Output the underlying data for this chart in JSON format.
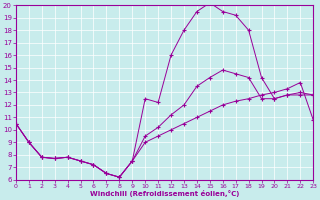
{
  "xlabel": "Windchill (Refroidissement éolien,°C)",
  "bg_color": "#c8ecec",
  "line_color": "#990099",
  "grid_color": "#ffffff",
  "xlim": [
    0,
    23
  ],
  "ylim": [
    6,
    20
  ],
  "xticks": [
    0,
    1,
    2,
    3,
    4,
    5,
    6,
    7,
    8,
    9,
    10,
    11,
    12,
    13,
    14,
    15,
    16,
    17,
    18,
    19,
    20,
    21,
    22,
    23
  ],
  "yticks": [
    6,
    7,
    8,
    9,
    10,
    11,
    12,
    13,
    14,
    15,
    16,
    17,
    18,
    19,
    20
  ],
  "curve1_x": [
    0,
    1,
    2,
    3,
    4,
    5,
    6,
    7,
    8,
    9,
    10,
    11,
    12,
    13,
    14,
    15,
    16,
    17,
    18,
    19,
    20,
    21,
    22,
    23
  ],
  "curve1_y": [
    10.5,
    9.0,
    7.8,
    7.7,
    7.8,
    7.5,
    7.2,
    6.5,
    6.2,
    7.5,
    12.5,
    12.2,
    16.0,
    18.0,
    19.5,
    20.2,
    19.5,
    19.2,
    18.0,
    14.2,
    12.5,
    12.8,
    12.8,
    12.8
  ],
  "curve2_x": [
    0,
    1,
    2,
    3,
    4,
    5,
    6,
    7,
    8,
    9,
    10,
    11,
    12,
    13,
    14,
    15,
    16,
    17,
    18,
    19,
    20,
    21,
    22,
    23
  ],
  "curve2_y": [
    10.5,
    9.0,
    7.8,
    7.7,
    7.8,
    7.5,
    7.2,
    6.5,
    6.2,
    7.5,
    9.5,
    10.2,
    11.2,
    12.0,
    13.5,
    14.2,
    14.8,
    14.5,
    14.2,
    12.5,
    12.5,
    12.8,
    13.0,
    12.8
  ],
  "curve3_x": [
    0,
    1,
    2,
    3,
    4,
    5,
    6,
    7,
    8,
    9,
    10,
    11,
    12,
    13,
    14,
    15,
    16,
    17,
    18,
    19,
    20,
    21,
    22,
    23
  ],
  "curve3_y": [
    10.5,
    9.0,
    7.8,
    7.7,
    7.8,
    7.5,
    7.2,
    6.5,
    6.2,
    7.5,
    9.0,
    9.5,
    10.0,
    10.5,
    11.0,
    11.5,
    12.0,
    12.3,
    12.5,
    12.8,
    13.0,
    13.3,
    13.8,
    10.8
  ]
}
